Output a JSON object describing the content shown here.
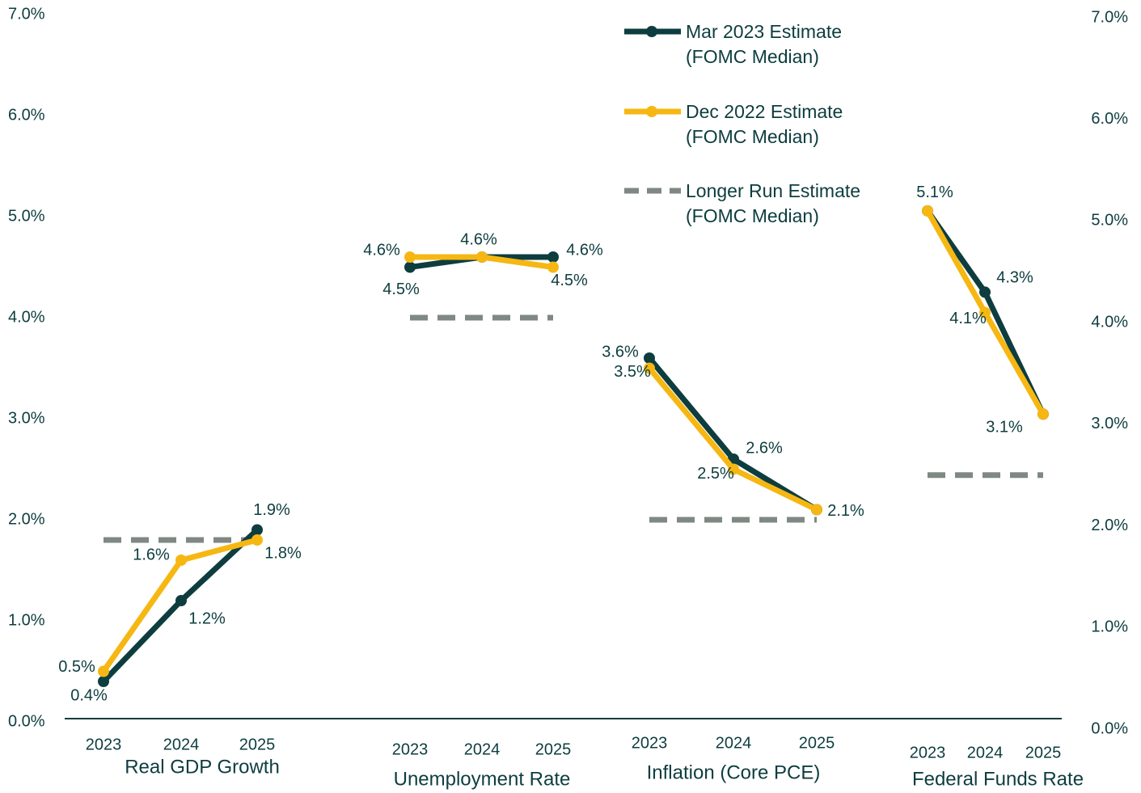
{
  "chart_data": {
    "type": "line",
    "ylim": [
      0,
      7
    ],
    "yticks": [
      {
        "value": 0,
        "label": "0.0%"
      },
      {
        "value": 1,
        "label": "1.0%"
      },
      {
        "value": 2,
        "label": "2.0%"
      },
      {
        "value": 3,
        "label": "3.0%"
      },
      {
        "value": 4,
        "label": "4.0%"
      },
      {
        "value": 5,
        "label": "5.0%"
      },
      {
        "value": 6,
        "label": "6.0%"
      },
      {
        "value": 7,
        "label": "7.0%"
      }
    ],
    "y2lim": [
      0,
      7
    ],
    "y2ticks": [
      {
        "value": 0,
        "label": "0.0%"
      },
      {
        "value": 1,
        "label": "1.0%"
      },
      {
        "value": 2,
        "label": "2.0%"
      },
      {
        "value": 3,
        "label": "3.0%"
      },
      {
        "value": 4,
        "label": "4.0%"
      },
      {
        "value": 5,
        "label": "5.0%"
      },
      {
        "value": 6,
        "label": "6.0%"
      },
      {
        "value": 7,
        "label": "7.0%"
      }
    ],
    "groups": [
      {
        "label": "Real GDP Growth",
        "categories": [
          "2023",
          "2024",
          "2025"
        ]
      },
      {
        "label": "Unemployment Rate",
        "categories": [
          "2023",
          "2024",
          "2025"
        ]
      },
      {
        "label": "Inflation (Core PCE)",
        "categories": [
          "2023",
          "2024",
          "2025"
        ]
      },
      {
        "label": "Federal Funds Rate",
        "categories": [
          "2023",
          "2024",
          "2025"
        ],
        "axis": "y2"
      }
    ],
    "series": [
      {
        "name": "Mar 2023 Estimate (FOMC Median)",
        "color": "#0d3d3f",
        "values": [
          [
            0.4,
            1.2,
            1.9
          ],
          [
            4.5,
            4.6,
            4.6
          ],
          [
            3.6,
            2.6,
            2.1
          ],
          [
            5.1,
            4.3,
            3.1
          ]
        ],
        "value_labels": [
          [
            "0.4%",
            "1.2%",
            "1.9%"
          ],
          [
            "4.5%",
            "4.6%",
            "4.6%"
          ],
          [
            "3.6%",
            "2.6%",
            null
          ],
          [
            "5.1%",
            "4.3%",
            "3.1%"
          ]
        ]
      },
      {
        "name": "Dec 2022 Estimate (FOMC Median)",
        "color": "#f6b713",
        "values": [
          [
            0.5,
            1.6,
            1.8
          ],
          [
            4.6,
            4.6,
            4.5
          ],
          [
            3.5,
            2.5,
            2.1
          ],
          [
            5.1,
            4.1,
            3.1
          ]
        ],
        "value_labels": [
          [
            "0.5%",
            "1.6%",
            "1.8%"
          ],
          [
            "4.6%",
            null,
            "4.5%"
          ],
          [
            "3.5%",
            "2.5%",
            "2.1%"
          ],
          [
            null,
            "4.1%",
            null
          ]
        ]
      },
      {
        "name": "Longer Run Estimate (FOMC Median)",
        "color": "#7f8883",
        "style": "dashed",
        "values": [
          1.8,
          4.0,
          2.0,
          2.5
        ]
      }
    ]
  }
}
